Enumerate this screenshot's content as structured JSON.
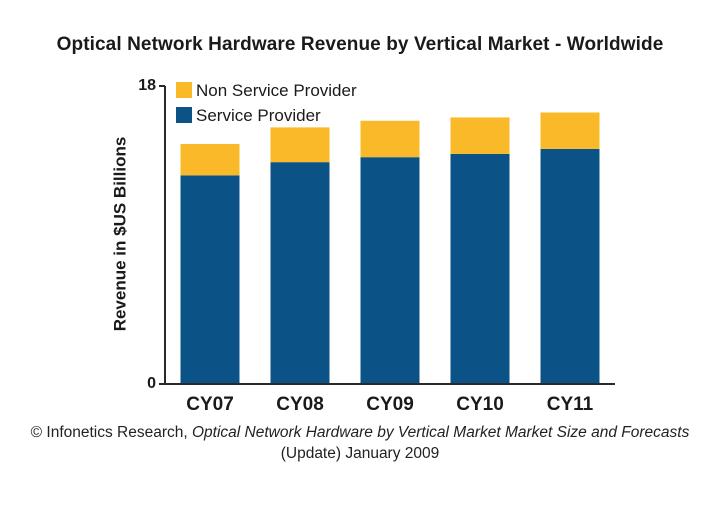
{
  "chart_data": {
    "type": "bar",
    "stacked": true,
    "title": "Optical Network Hardware Revenue by Vertical Market - Worldwide",
    "ylabel": "Revenue in $US Billions",
    "xlabel": "",
    "ylim": [
      0,
      18
    ],
    "yticks": [
      "0",
      "18"
    ],
    "categories": [
      "CY07",
      "CY08",
      "CY09",
      "CY10",
      "CY11"
    ],
    "series": [
      {
        "name": "Service Provider",
        "color": "#0b5387",
        "values": [
          12.6,
          13.4,
          13.7,
          13.9,
          14.2
        ]
      },
      {
        "name": "Non Service Provider",
        "color": "#f9b928",
        "values": [
          1.9,
          2.1,
          2.2,
          2.2,
          2.2
        ]
      }
    ],
    "legend": {
      "position": "top-left",
      "order": [
        "Non Service Provider",
        "Service Provider"
      ]
    },
    "grid": false
  },
  "source": {
    "prefix": "© Infonetics Research, ",
    "italic": "Optical Network Hardware by Vertical Market Market Size and Forecasts",
    "suffix": " (Update) January 2009"
  }
}
